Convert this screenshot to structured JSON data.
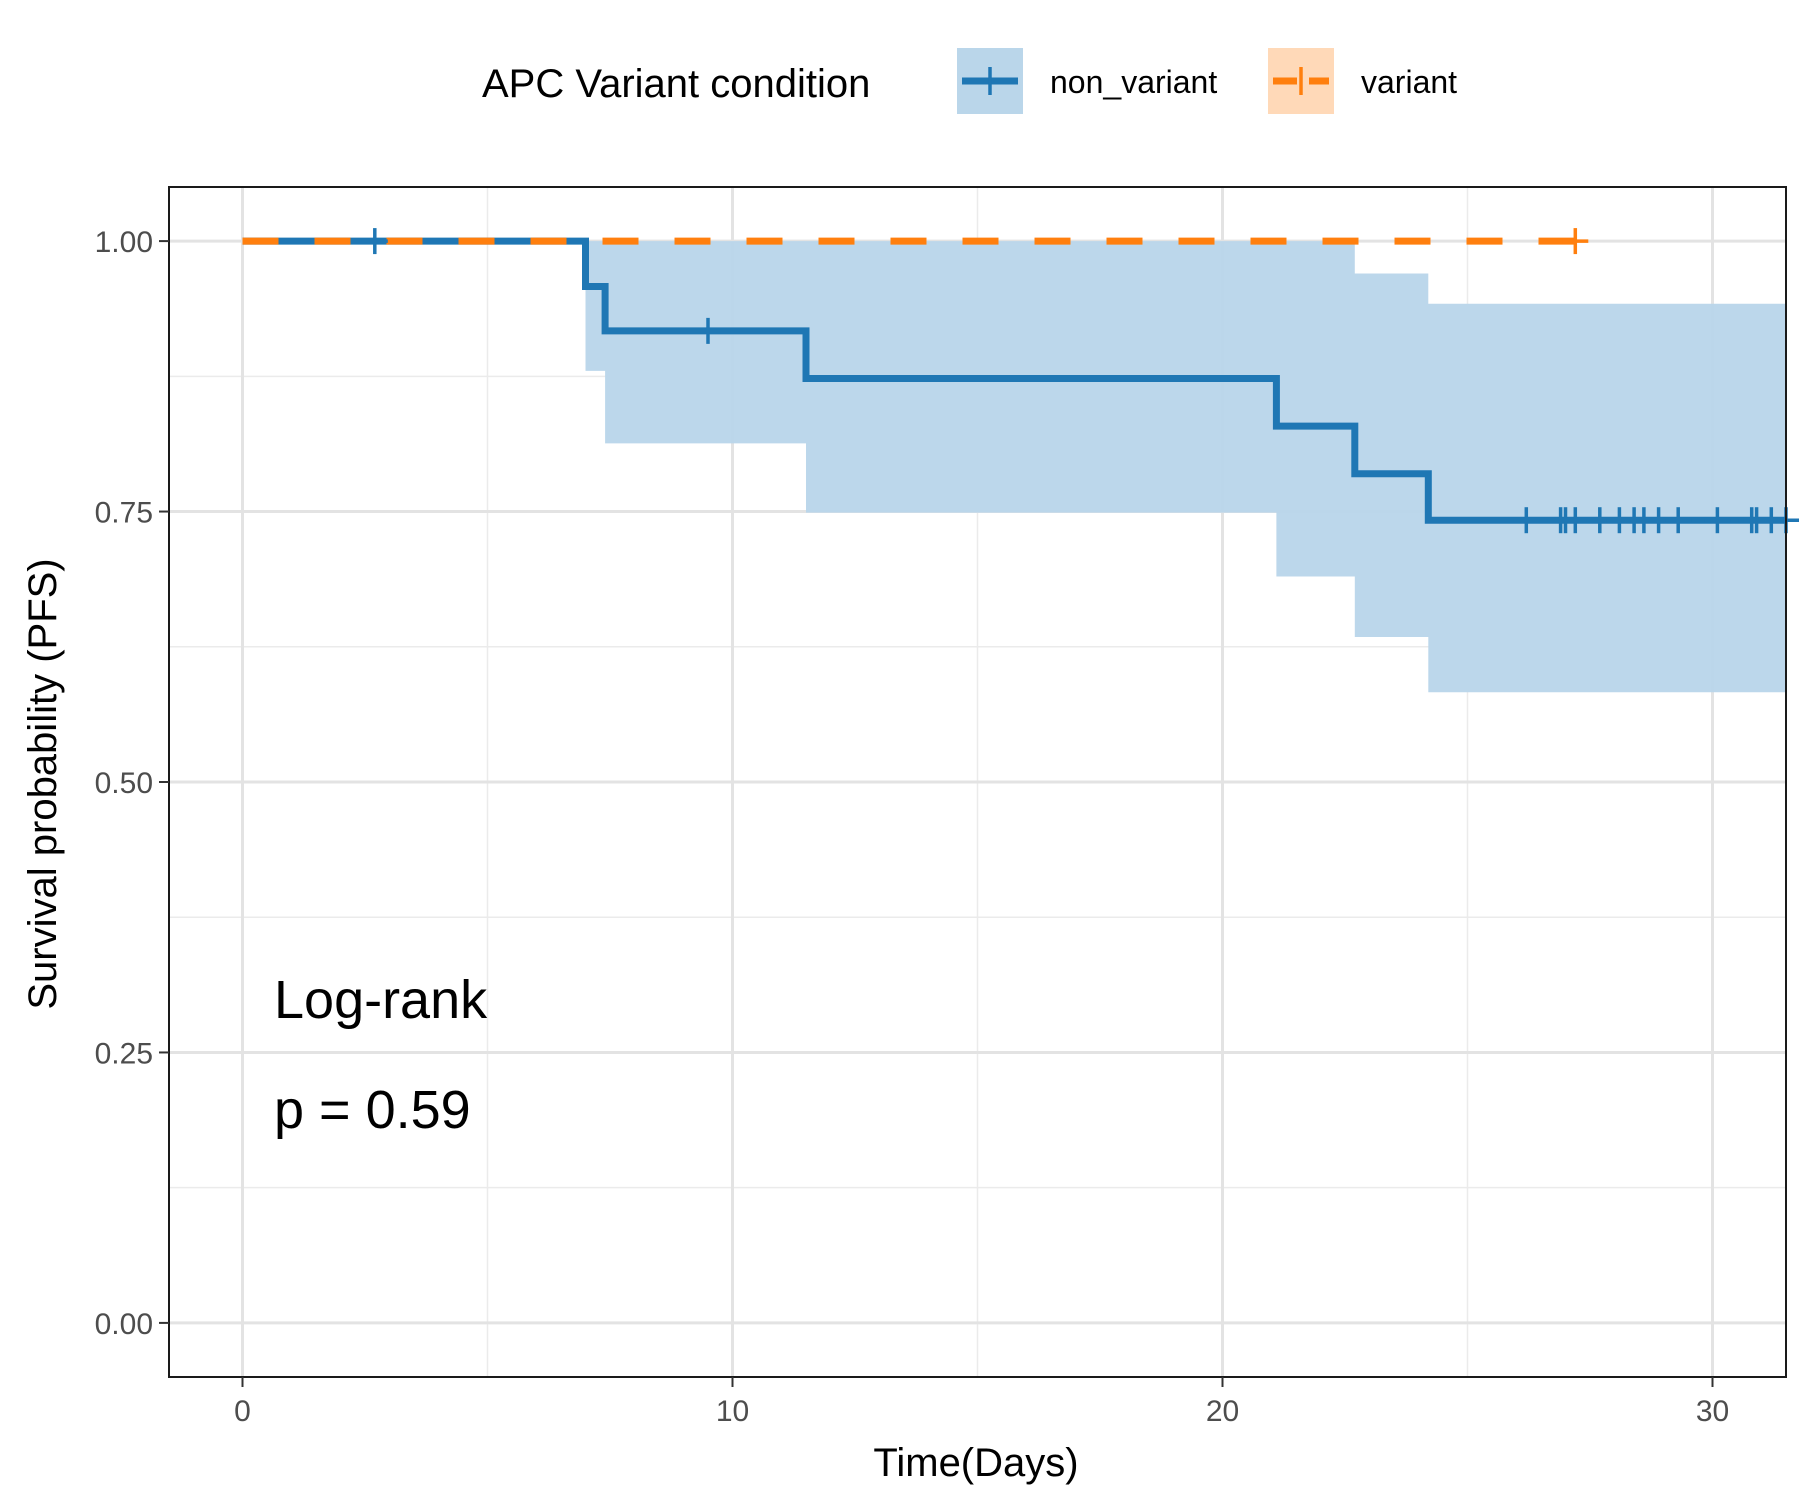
{
  "chart_data": {
    "type": "line",
    "legend": {
      "title": "APC Variant condition",
      "position": "top",
      "entries": [
        {
          "name": "non_variant",
          "line": "solid",
          "color": "#1f77b4",
          "fill": "#bad6ea"
        },
        {
          "name": "variant",
          "line": "dashed",
          "color": "#ff7f0e",
          "fill": "#ffd9b8"
        }
      ]
    },
    "xlabel": "Time(Days)",
    "ylabel": "Survival probability (PFS)",
    "xlim": [
      -1.5,
      31.5
    ],
    "ylim": [
      -0.05,
      1.05
    ],
    "x_ticks": [
      0,
      10,
      20,
      30
    ],
    "x_tick_labels": [
      "0",
      "10",
      "20",
      "30"
    ],
    "y_ticks": [
      0,
      0.25,
      0.5,
      0.75,
      1
    ],
    "y_tick_labels": [
      "0.00",
      "0.25",
      "0.50",
      "0.75",
      "1.00"
    ],
    "grid": true,
    "annotations": [
      "Log-rank",
      "p = 0.59"
    ],
    "series": [
      {
        "name": "non_variant",
        "steps": [
          [
            0,
            1.0
          ],
          [
            7.0,
            0.958
          ],
          [
            7.4,
            0.917
          ],
          [
            11.5,
            0.873
          ],
          [
            21.1,
            0.829
          ],
          [
            22.7,
            0.785
          ],
          [
            24.2,
            0.742
          ],
          [
            31.5,
            0.742
          ]
        ],
        "ci_lower": [
          [
            0,
            1.0
          ],
          [
            7.0,
            0.88
          ],
          [
            7.4,
            0.813
          ],
          [
            11.5,
            0.749
          ],
          [
            21.1,
            0.69
          ],
          [
            22.7,
            0.634
          ],
          [
            24.2,
            0.583
          ],
          [
            31.5,
            0.583
          ]
        ],
        "ci_upper": [
          [
            0,
            1.0
          ],
          [
            7.0,
            1.0
          ],
          [
            22.7,
            0.97
          ],
          [
            24.2,
            0.942
          ],
          [
            31.5,
            0.942
          ]
        ],
        "censored": [
          2.7,
          9.5,
          26.2,
          26.9,
          27.0,
          27.2,
          27.7,
          28.1,
          28.4,
          28.6,
          28.9,
          29.3,
          30.1,
          30.8,
          30.9,
          31.2,
          31.5
        ]
      },
      {
        "name": "variant",
        "steps": [
          [
            0,
            1.0
          ],
          [
            27.2,
            1.0
          ]
        ],
        "ci_lower": [
          [
            0,
            1.0
          ],
          [
            27.2,
            1.0
          ]
        ],
        "ci_upper": [
          [
            0,
            1.0
          ],
          [
            27.2,
            1.0
          ]
        ],
        "censored": [
          27.2
        ]
      }
    ]
  }
}
